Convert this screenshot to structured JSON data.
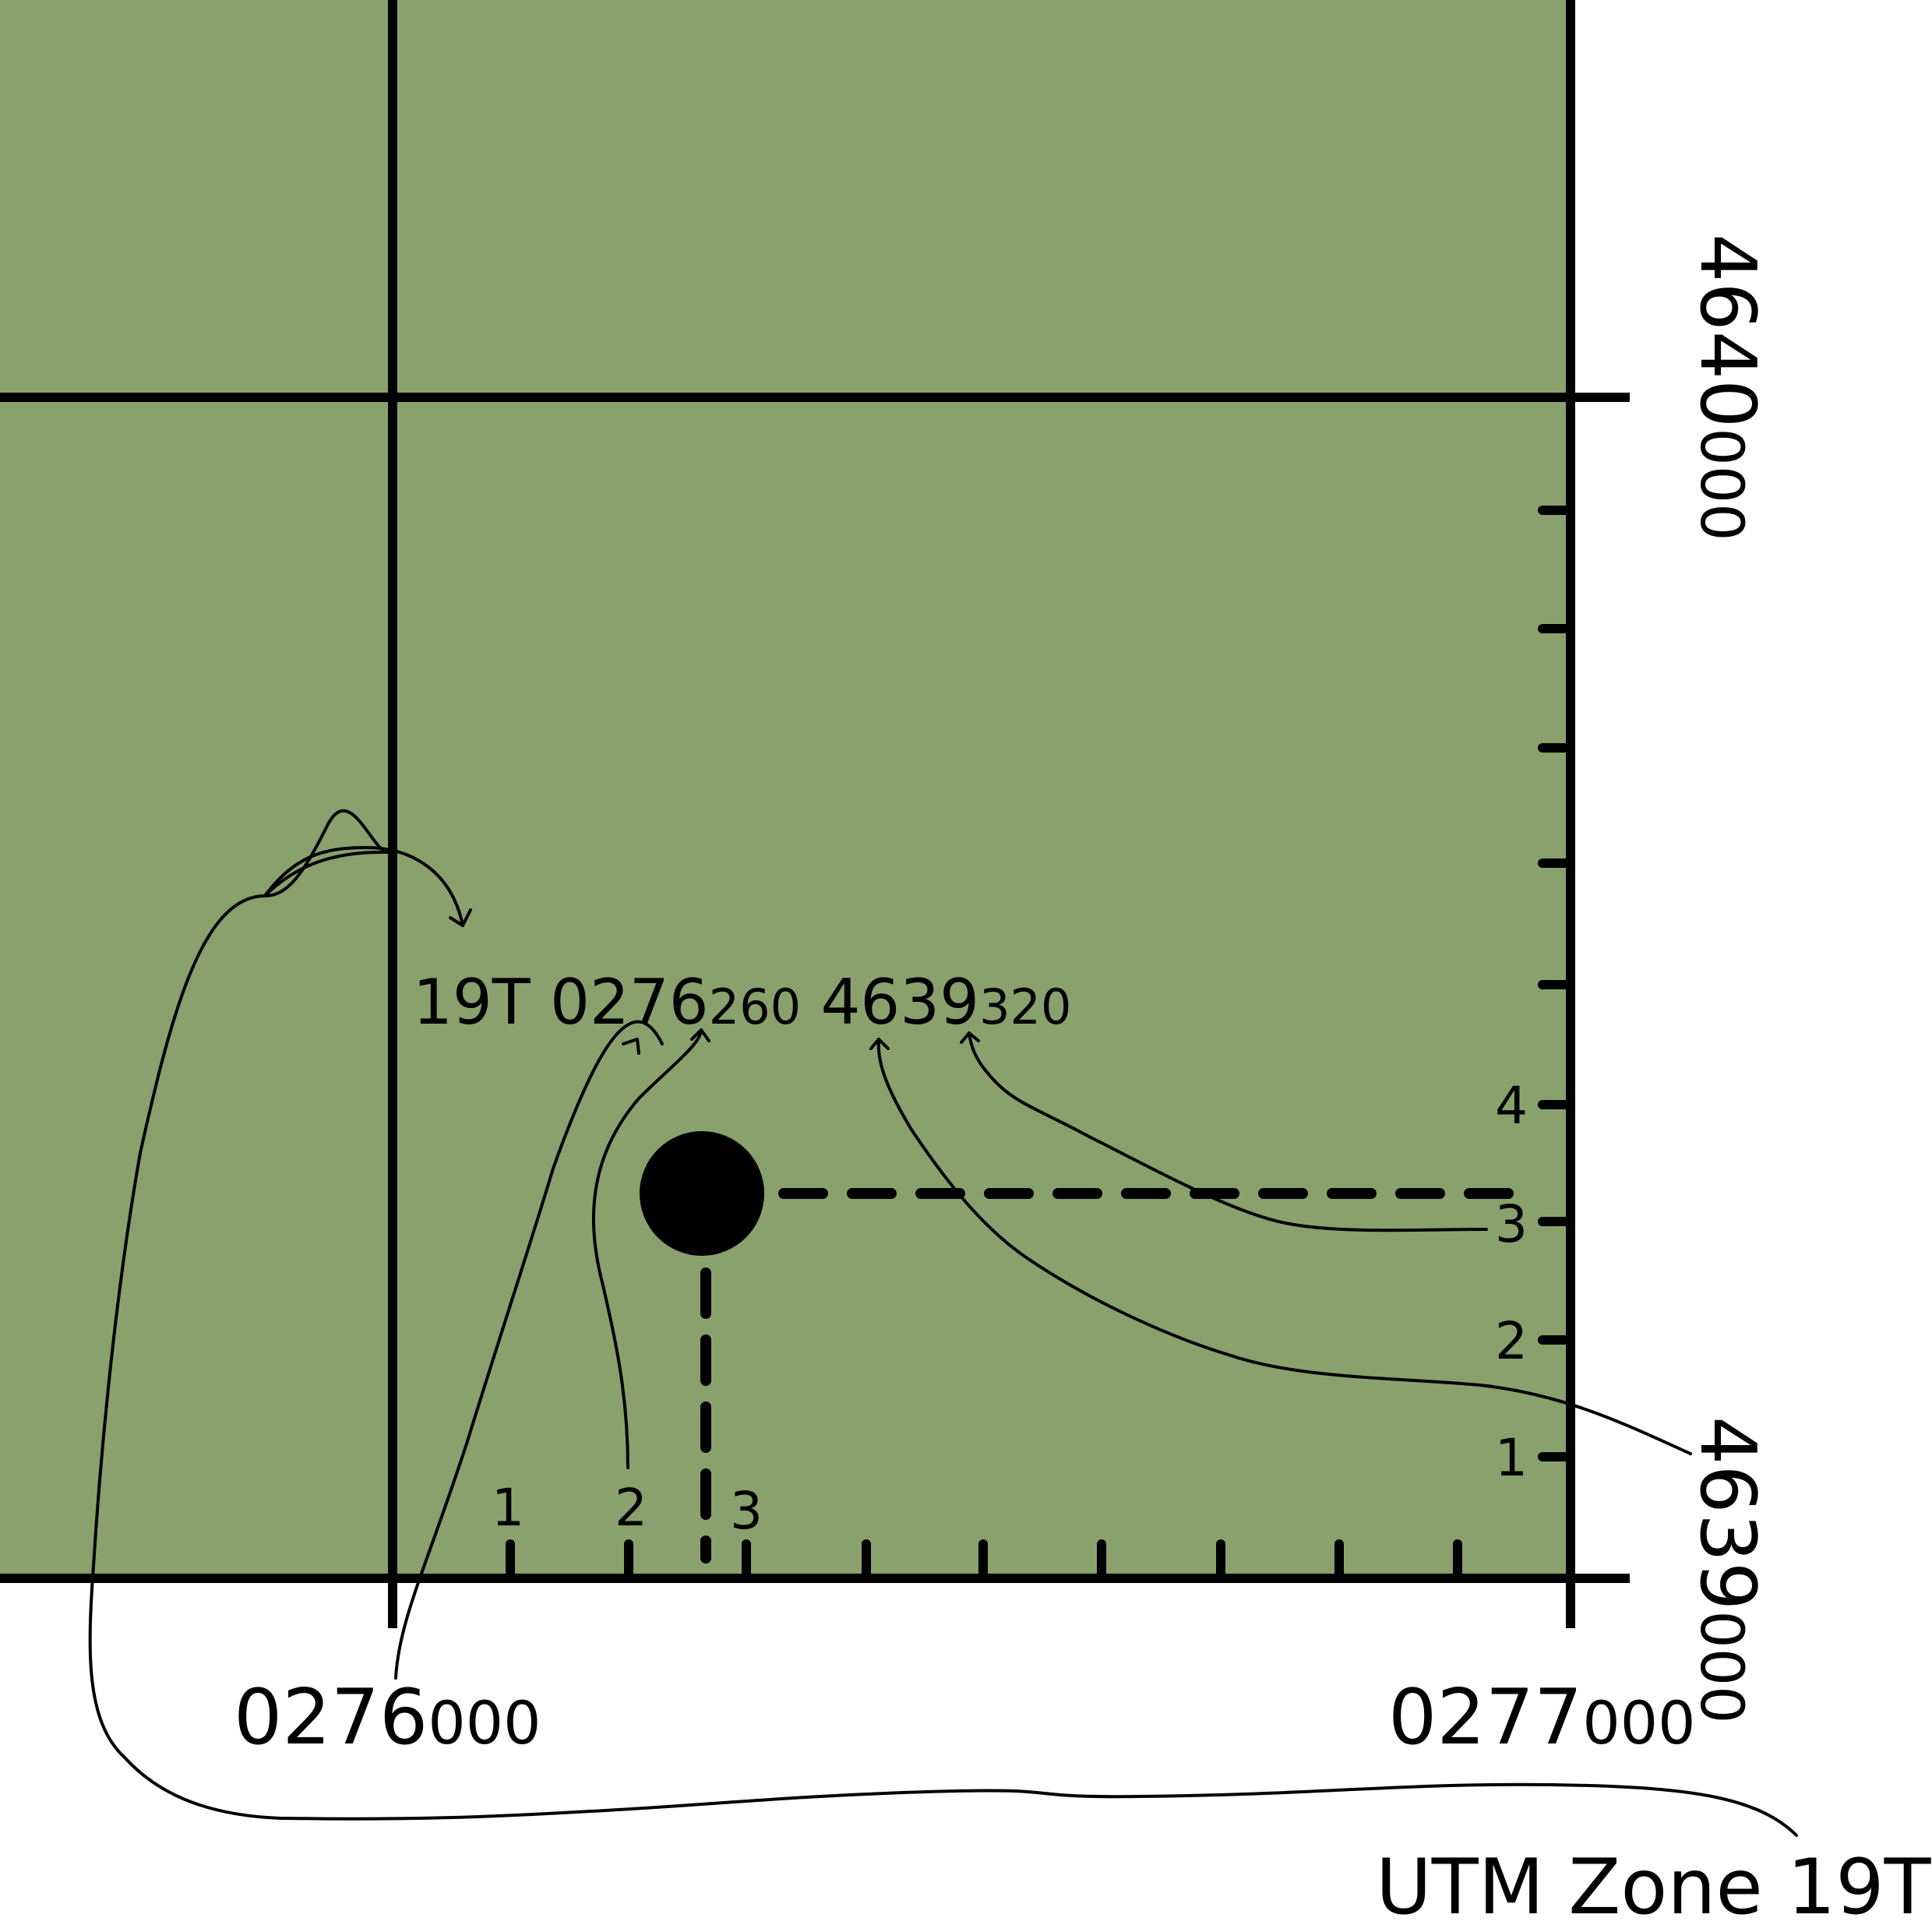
{
  "colors": {
    "map_fill": "#89a16d",
    "ink": "#000000",
    "background": "#ffffff"
  },
  "coordinate": {
    "zone": "19T",
    "easting_major": "0276",
    "easting_minor": "260",
    "northing_major": "4639",
    "northing_minor": "320"
  },
  "easting_labels": {
    "left": {
      "major": "0276",
      "minor": "000"
    },
    "right": {
      "major": "0277",
      "minor": "000"
    }
  },
  "northing_labels": {
    "top": {
      "major": "4640",
      "minor": "000"
    },
    "bottom": {
      "major": "4639",
      "minor": "000"
    }
  },
  "x_ticks": [
    "1",
    "2",
    "3"
  ],
  "y_ticks": [
    "1",
    "2",
    "3",
    "4"
  ],
  "zone_label": "UTM Zone 19T"
}
